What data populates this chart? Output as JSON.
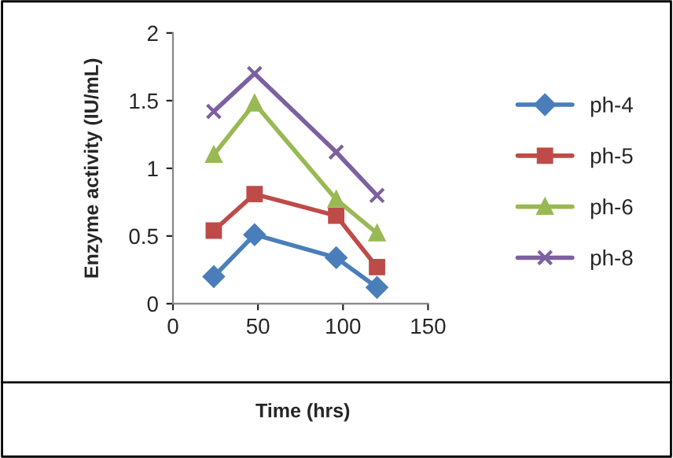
{
  "chart_data": {
    "type": "line",
    "xlabel": "Time (hrs)",
    "ylabel": "Enzyme activity (IU/mL)",
    "x": [
      24,
      48,
      96,
      120
    ],
    "series": [
      {
        "name": "ph-4",
        "color": "#4a7ebb",
        "marker": "diamond",
        "values": [
          0.2,
          0.51,
          0.34,
          0.12
        ]
      },
      {
        "name": "ph-5",
        "color": "#be4b48",
        "marker": "square",
        "values": [
          0.54,
          0.81,
          0.65,
          0.27
        ]
      },
      {
        "name": "ph-6",
        "color": "#98b954",
        "marker": "triangle",
        "values": [
          1.1,
          1.48,
          0.77,
          0.52
        ]
      },
      {
        "name": "ph-8",
        "color": "#7d60a0",
        "marker": "cross",
        "values": [
          1.42,
          1.7,
          1.12,
          0.8
        ]
      }
    ],
    "xlim": [
      0,
      150
    ],
    "xticks": [
      0,
      50,
      100,
      150
    ],
    "ylim": [
      0,
      2
    ],
    "yticks": [
      0,
      0.5,
      1,
      1.5,
      2
    ],
    "grid": false,
    "legend": "right",
    "line_style": "solid"
  }
}
